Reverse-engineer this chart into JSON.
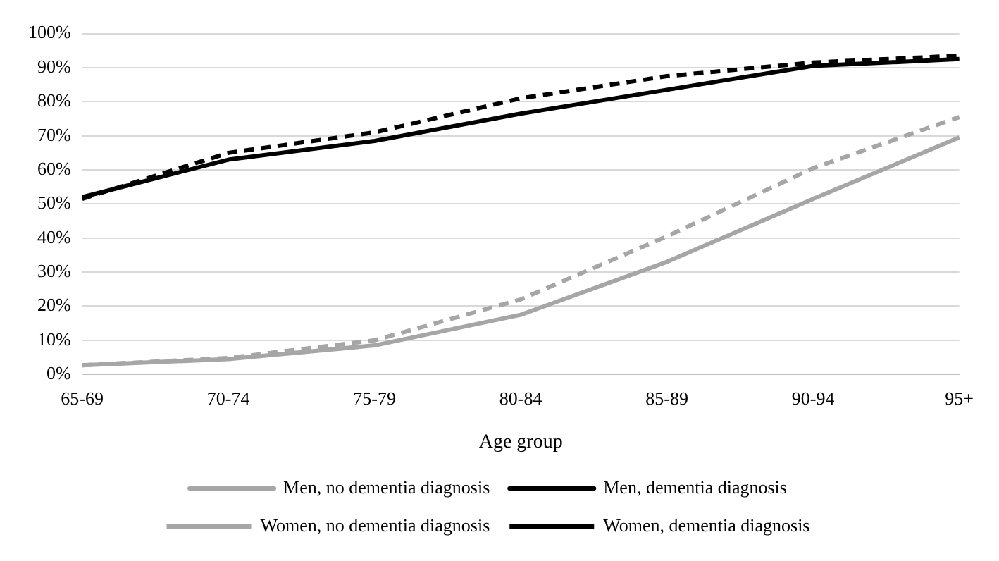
{
  "chart_data": {
    "type": "line",
    "xlabel": "Age group",
    "categories": [
      "65-69",
      "70-74",
      "75-79",
      "80-84",
      "85-89",
      "90-94",
      "95+"
    ],
    "series": [
      {
        "name": "Men, no dementia diagnosis",
        "color": "#a6a6a6",
        "line_style": "solid",
        "values": [
          2.7,
          4.5,
          8.5,
          17.5,
          33,
          51.5,
          69.5
        ]
      },
      {
        "name": "Men, dementia diagnosis",
        "color": "#000000",
        "line_style": "solid",
        "values": [
          52,
          63,
          68.5,
          76.5,
          83.5,
          90.5,
          92.5
        ]
      },
      {
        "name": "Women, no dementia diagnosis",
        "color": "#a6a6a6",
        "line_style": "dashed",
        "values": [
          2.7,
          4.8,
          10,
          22,
          40.5,
          60.5,
          75.5
        ]
      },
      {
        "name": "Women, dementia diagnosis",
        "color": "#000000",
        "line_style": "dashed",
        "values": [
          51.5,
          65,
          71,
          81,
          87.5,
          91.5,
          93.5
        ]
      }
    ],
    "ylim": [
      0,
      100
    ],
    "yticks": [
      {
        "value": 0,
        "label": "0%"
      },
      {
        "value": 10,
        "label": "10%"
      },
      {
        "value": 20,
        "label": "20%"
      },
      {
        "value": 30,
        "label": "30%"
      },
      {
        "value": 40,
        "label": "40%"
      },
      {
        "value": 50,
        "label": "50%"
      },
      {
        "value": 60,
        "label": "60%"
      },
      {
        "value": 70,
        "label": "70%"
      },
      {
        "value": 80,
        "label": "80%"
      },
      {
        "value": 90,
        "label": "90%"
      },
      {
        "value": 100,
        "label": "100%"
      }
    ],
    "grid": "y",
    "legend": "bottom",
    "marker": "none"
  }
}
